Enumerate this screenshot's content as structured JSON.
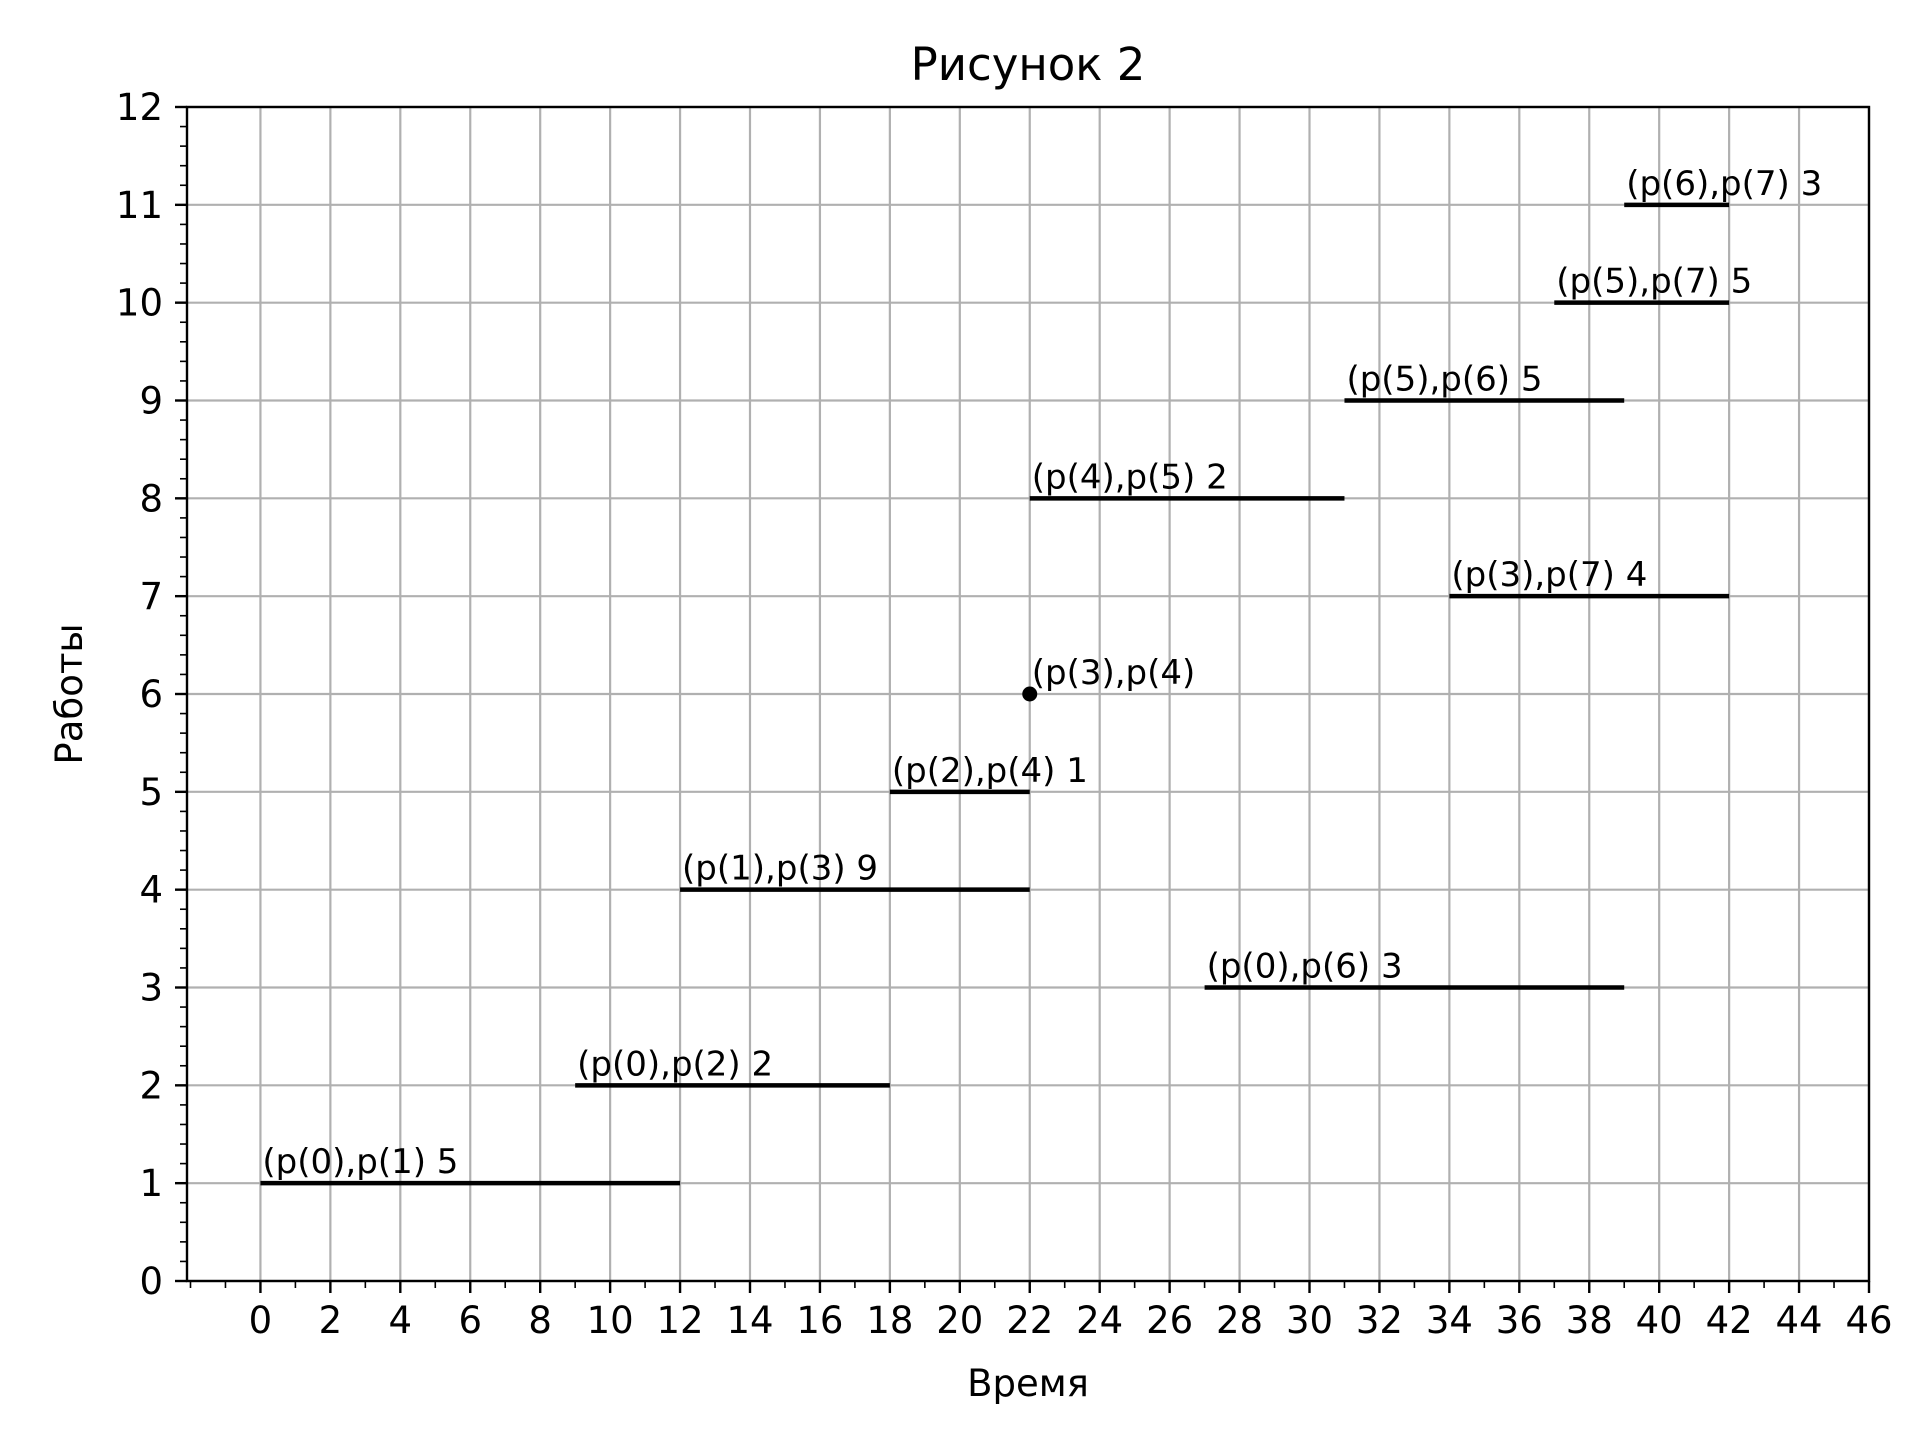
{
  "chart_data": {
    "type": "line",
    "title": "Рисунок 2",
    "xlabel": "Время",
    "ylabel": "Работы",
    "xlim": [
      -2.1,
      46
    ],
    "ylim": [
      0,
      12
    ],
    "xticks": [
      0,
      2,
      4,
      6,
      8,
      10,
      12,
      14,
      16,
      18,
      20,
      22,
      24,
      26,
      28,
      30,
      32,
      34,
      36,
      38,
      40,
      42,
      44,
      46
    ],
    "yticks": [
      0,
      1,
      2,
      3,
      4,
      5,
      6,
      7,
      8,
      9,
      10,
      11,
      12
    ],
    "x_minor_step": 1,
    "y_minor_step": 0.2,
    "grid": true,
    "series": [
      {
        "label": "(p(0),p(1) 5",
        "start": 0,
        "end": 12,
        "y": 1
      },
      {
        "label": "(p(0),p(2) 2",
        "start": 9,
        "end": 18,
        "y": 2
      },
      {
        "label": "(p(0),p(6) 3",
        "start": 27,
        "end": 39,
        "y": 3
      },
      {
        "label": "(p(1),p(3) 9",
        "start": 12,
        "end": 22,
        "y": 4
      },
      {
        "label": "(p(2),p(4) 1",
        "start": 18,
        "end": 22,
        "y": 5
      },
      {
        "label": "(p(3),p(4)",
        "start": 22,
        "end": 22,
        "y": 6
      },
      {
        "label": "(p(3),p(7) 4",
        "start": 34,
        "end": 42,
        "y": 7
      },
      {
        "label": "(p(4),p(5) 2",
        "start": 22,
        "end": 31,
        "y": 8
      },
      {
        "label": "(p(5),p(6) 5",
        "start": 31,
        "end": 39,
        "y": 9
      },
      {
        "label": "(p(5),p(7) 5",
        "start": 37,
        "end": 42,
        "y": 10
      },
      {
        "label": "(p(6),p(7) 3",
        "start": 39,
        "end": 42,
        "y": 11
      }
    ]
  }
}
